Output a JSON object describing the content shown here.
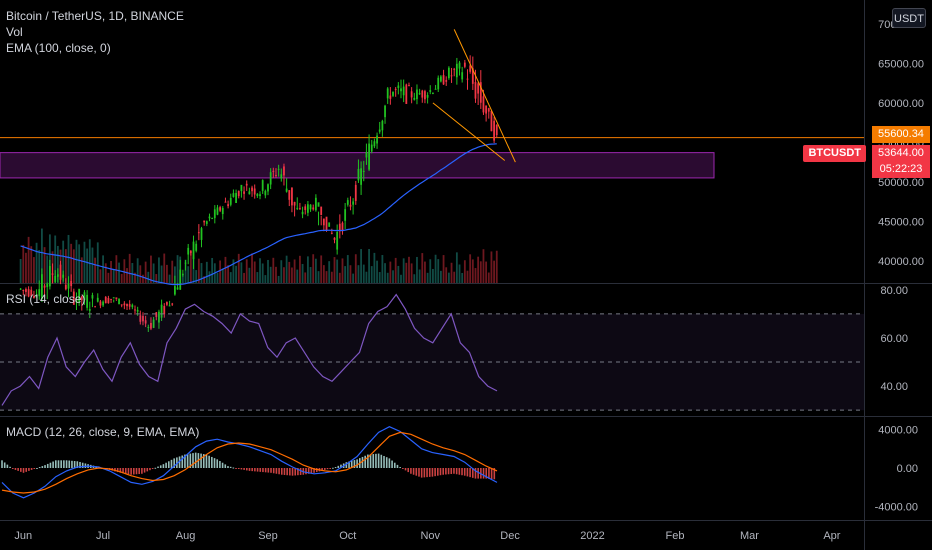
{
  "header": {
    "symbol": "Bitcoin / TetherUS, 1D, BINANCE",
    "volume_label": "Vol",
    "ema_label": "EMA (100, close, 0)",
    "currency_badge": "USDT"
  },
  "rsi_panel": {
    "label": "RSI (14, close)"
  },
  "macd_panel": {
    "label": "MACD (12, 26, close, 9, EMA, EMA)"
  },
  "price_tags": {
    "resistance": "55600.34",
    "last_price": "53644.00",
    "countdown": "05:22:23",
    "ticker": "BTCUSDT"
  },
  "colors": {
    "up": "#26a69a",
    "up_bright": "#21c321",
    "down": "#f23645",
    "ema": "#2962ff",
    "rsi": "#7e57c2",
    "macd": "#2962ff",
    "signal": "#ff6d00",
    "resistance": "#f57c00",
    "zone": "#9c27b0",
    "trend": "#ff9800"
  },
  "chart_data": [
    {
      "type": "candlestick",
      "title": "Bitcoin / TetherUS, 1D, BINANCE",
      "x_ticks": [
        "Jun",
        "Jul",
        "Aug",
        "Sep",
        "Oct",
        "Nov",
        "Dec",
        "2022",
        "Feb",
        "Mar",
        "Apr"
      ],
      "y_ticks": [
        "40000.00",
        "45000.00",
        "50000.00",
        "55000.00",
        "60000.00",
        "65000.00",
        "70000.00"
      ],
      "ylim": [
        37200,
        71500
      ],
      "ohlc_weekly": [
        {
          "date": "2021-05-31",
          "o": 36500,
          "h": 39500,
          "l": 35400,
          "c": 35800
        },
        {
          "date": "2021-06-07",
          "o": 35800,
          "h": 40500,
          "l": 31100,
          "c": 39000
        },
        {
          "date": "2021-06-14",
          "o": 39000,
          "h": 41300,
          "l": 34900,
          "c": 35500
        },
        {
          "date": "2021-06-21",
          "o": 35500,
          "h": 36300,
          "l": 28800,
          "c": 34700
        },
        {
          "date": "2021-06-28",
          "o": 34700,
          "h": 36600,
          "l": 32700,
          "c": 35300
        },
        {
          "date": "2021-07-05",
          "o": 35300,
          "h": 35100,
          "l": 32000,
          "c": 34200
        },
        {
          "date": "2021-07-12",
          "o": 34200,
          "h": 34600,
          "l": 31000,
          "c": 31800
        },
        {
          "date": "2021-07-19",
          "o": 31800,
          "h": 35400,
          "l": 29300,
          "c": 34300
        },
        {
          "date": "2021-07-26",
          "o": 34300,
          "h": 42600,
          "l": 34300,
          "c": 39800
        },
        {
          "date": "2021-08-02",
          "o": 39800,
          "h": 45000,
          "l": 37600,
          "c": 44600
        },
        {
          "date": "2021-08-09",
          "o": 44600,
          "h": 48100,
          "l": 44000,
          "c": 46900
        },
        {
          "date": "2021-08-16",
          "o": 46900,
          "h": 49300,
          "l": 43900,
          "c": 49300
        },
        {
          "date": "2021-08-23",
          "o": 49300,
          "h": 50500,
          "l": 46200,
          "c": 48800
        },
        {
          "date": "2021-08-30",
          "o": 48800,
          "h": 52900,
          "l": 46500,
          "c": 51800
        },
        {
          "date": "2021-09-06",
          "o": 51800,
          "h": 52800,
          "l": 42800,
          "c": 46000
        },
        {
          "date": "2021-09-13",
          "o": 46000,
          "h": 48800,
          "l": 44700,
          "c": 47300
        },
        {
          "date": "2021-09-20",
          "o": 47300,
          "h": 44500,
          "l": 39600,
          "c": 42700
        },
        {
          "date": "2021-09-27",
          "o": 42700,
          "h": 48500,
          "l": 40800,
          "c": 48200
        },
        {
          "date": "2021-10-04",
          "o": 48200,
          "h": 56000,
          "l": 47000,
          "c": 54900
        },
        {
          "date": "2021-10-11",
          "o": 54900,
          "h": 62000,
          "l": 54000,
          "c": 61500
        },
        {
          "date": "2021-10-18",
          "o": 61500,
          "h": 67000,
          "l": 60000,
          "c": 61000
        },
        {
          "date": "2021-10-25",
          "o": 61000,
          "h": 62600,
          "l": 58000,
          "c": 61300
        },
        {
          "date": "2021-11-01",
          "o": 61300,
          "h": 64300,
          "l": 59600,
          "c": 63300
        },
        {
          "date": "2021-11-08",
          "o": 63300,
          "h": 69000,
          "l": 62300,
          "c": 64400
        },
        {
          "date": "2021-11-15",
          "o": 64400,
          "h": 66300,
          "l": 55700,
          "c": 59700
        },
        {
          "date": "2021-11-22",
          "o": 59700,
          "h": 59400,
          "l": 53300,
          "c": 53644
        }
      ],
      "resistance_level": 55600.34,
      "zone_range": [
        50500,
        53700
      ]
    },
    {
      "type": "line",
      "title": "RSI (14, close)",
      "y_ticks": [
        "40.00",
        "60.00",
        "80.00"
      ],
      "ylim": [
        28,
        82
      ],
      "bands": [
        30,
        50,
        70
      ],
      "values": [
        32,
        38,
        40,
        44,
        39,
        52,
        60,
        48,
        44,
        50,
        55,
        47,
        42,
        52,
        58,
        49,
        44,
        42,
        58,
        64,
        72,
        74,
        71,
        69,
        66,
        62,
        70,
        67,
        66,
        56,
        52,
        58,
        60,
        54,
        48,
        44,
        42,
        46,
        50,
        54,
        66,
        71,
        73,
        78,
        72,
        64,
        60,
        58,
        64,
        70,
        58,
        54,
        44,
        40,
        38
      ]
    },
    {
      "type": "bar+line",
      "title": "MACD (12, 26, close, 9, EMA, EMA)",
      "y_ticks": [
        "4000.00",
        "0.00",
        "-4000.00"
      ],
      "ylim": [
        -5200,
        5200
      ],
      "macd": [
        -1500,
        -2600,
        -3100,
        -2600,
        -1900,
        -900,
        -300,
        100,
        200,
        100,
        -300,
        -900,
        -1500,
        -1700,
        -1400,
        -800,
        200,
        1200,
        2200,
        2800,
        3000,
        2700,
        2500,
        2200,
        1800,
        1400,
        700,
        100,
        -400,
        -600,
        -500,
        -300,
        400,
        1200,
        2500,
        3700,
        4300,
        3800,
        2900,
        2000,
        1600,
        1400,
        1200,
        600,
        -300,
        -900,
        -1500
      ],
      "signal": [
        -2300,
        -2500,
        -2600,
        -2500,
        -2200,
        -1700,
        -1100,
        -600,
        -200,
        0,
        -100,
        -400,
        -800,
        -1100,
        -1300,
        -1200,
        -800,
        -200,
        600,
        1400,
        2100,
        2500,
        2600,
        2500,
        2200,
        1900,
        1400,
        900,
        300,
        -100,
        -300,
        -400,
        -200,
        300,
        1100,
        2200,
        3300,
        3700,
        3500,
        3000,
        2500,
        2100,
        1800,
        1400,
        800,
        200,
        -300
      ]
    }
  ]
}
